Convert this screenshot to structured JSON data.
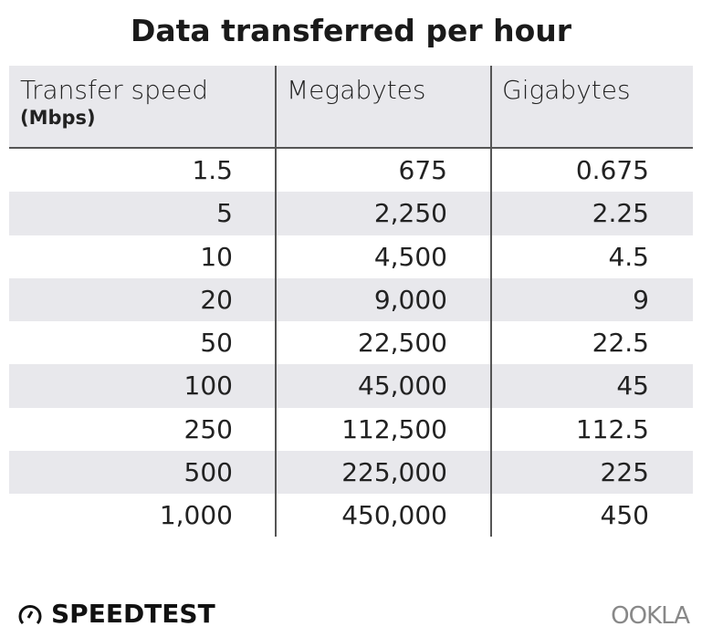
{
  "title": "Data transferred per hour",
  "chart_data": {
    "type": "table",
    "title": "Data transferred per hour",
    "columns": [
      {
        "label": "Transfer speed",
        "unit": "(Mbps)"
      },
      {
        "label": "Megabytes"
      },
      {
        "label": "Gigabytes"
      }
    ],
    "rows": [
      [
        "1.5",
        "675",
        "0.675"
      ],
      [
        "5",
        "2,250",
        "2.25"
      ],
      [
        "10",
        "4,500",
        "4.5"
      ],
      [
        "20",
        "9,000",
        "9"
      ],
      [
        "50",
        "22,500",
        "22.5"
      ],
      [
        "100",
        "45,000",
        "45"
      ],
      [
        "250",
        "112,500",
        "112.5"
      ],
      [
        "500",
        "225,000",
        "225"
      ],
      [
        "1,000",
        "450,000",
        "450"
      ]
    ]
  },
  "footer": {
    "brand": "SPEEDTEST",
    "logo_right": "OOKLA"
  }
}
